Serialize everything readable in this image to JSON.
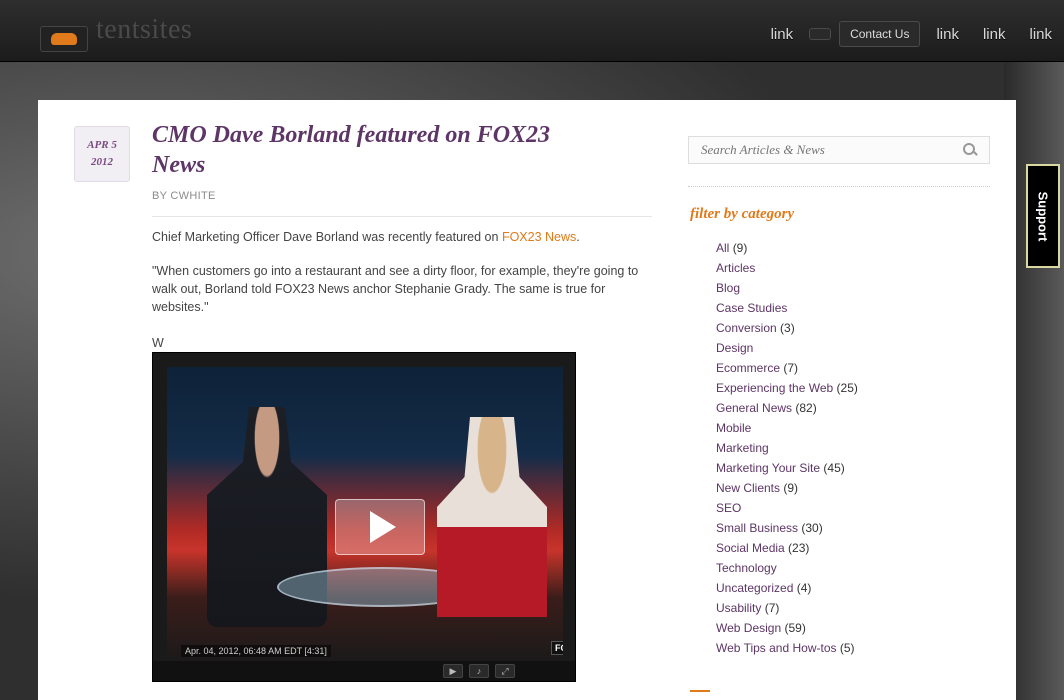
{
  "header": {
    "logo_text": "tentsites",
    "nav": [
      {
        "label": "link",
        "kind": "link"
      },
      {
        "label": "",
        "kind": "button"
      },
      {
        "label": "Contact Us",
        "kind": "button"
      },
      {
        "label": "link",
        "kind": "link"
      },
      {
        "label": "link",
        "kind": "link"
      },
      {
        "label": "link",
        "kind": "link"
      }
    ]
  },
  "post": {
    "date_month_day": "APR 5",
    "date_year": "2012",
    "title": "CMO Dave Borland featured on FOX23 News",
    "byline": "BY CWHITE",
    "lead_text": "Chief Marketing Officer Dave Borland was recently featured on ",
    "lead_link": "FOX23 News",
    "lead_end": ".",
    "quote": "\"When customers go into a restaurant and see a dirty floor, for example, they're going to walk out, Borland told FOX23 News anchor Stephanie Grady. The same is true for websites.\"",
    "w_line": "W",
    "video": {
      "timestamp": "Apr. 04, 2012, 06:48 AM EDT [4:31]",
      "network_tag": "FOX",
      "controls": [
        "▶",
        "♪",
        "⤢"
      ]
    }
  },
  "sidebar": {
    "search_placeholder": "Search Articles & News",
    "category_heading": "filter by category",
    "categories": [
      {
        "name": "All",
        "count": "(9)"
      },
      {
        "name": "Articles",
        "count": ""
      },
      {
        "name": "Blog",
        "count": ""
      },
      {
        "name": "Case Studies",
        "count": ""
      },
      {
        "name": "Conversion",
        "count": "(3)"
      },
      {
        "name": "Design",
        "count": ""
      },
      {
        "name": "Ecommerce",
        "count": "(7)"
      },
      {
        "name": "Experiencing the Web",
        "count": "(25)"
      },
      {
        "name": "General News",
        "count": "(82)"
      },
      {
        "name": "Mobile",
        "count": ""
      },
      {
        "name": "Marketing",
        "count": ""
      },
      {
        "name": "Marketing Your Site",
        "count": "(45)"
      },
      {
        "name": "New Clients",
        "count": "(9)"
      },
      {
        "name": "SEO",
        "count": ""
      },
      {
        "name": "Small Business",
        "count": "(30)"
      },
      {
        "name": "Social Media",
        "count": "(23)"
      },
      {
        "name": "Technology",
        "count": ""
      },
      {
        "name": "Uncategorized",
        "count": "(4)"
      },
      {
        "name": "Usability",
        "count": "(7)"
      },
      {
        "name": "Web Design",
        "count": "(59)"
      },
      {
        "name": "Web Tips and How-tos",
        "count": "(5)"
      }
    ]
  },
  "support_tab": "Support"
}
